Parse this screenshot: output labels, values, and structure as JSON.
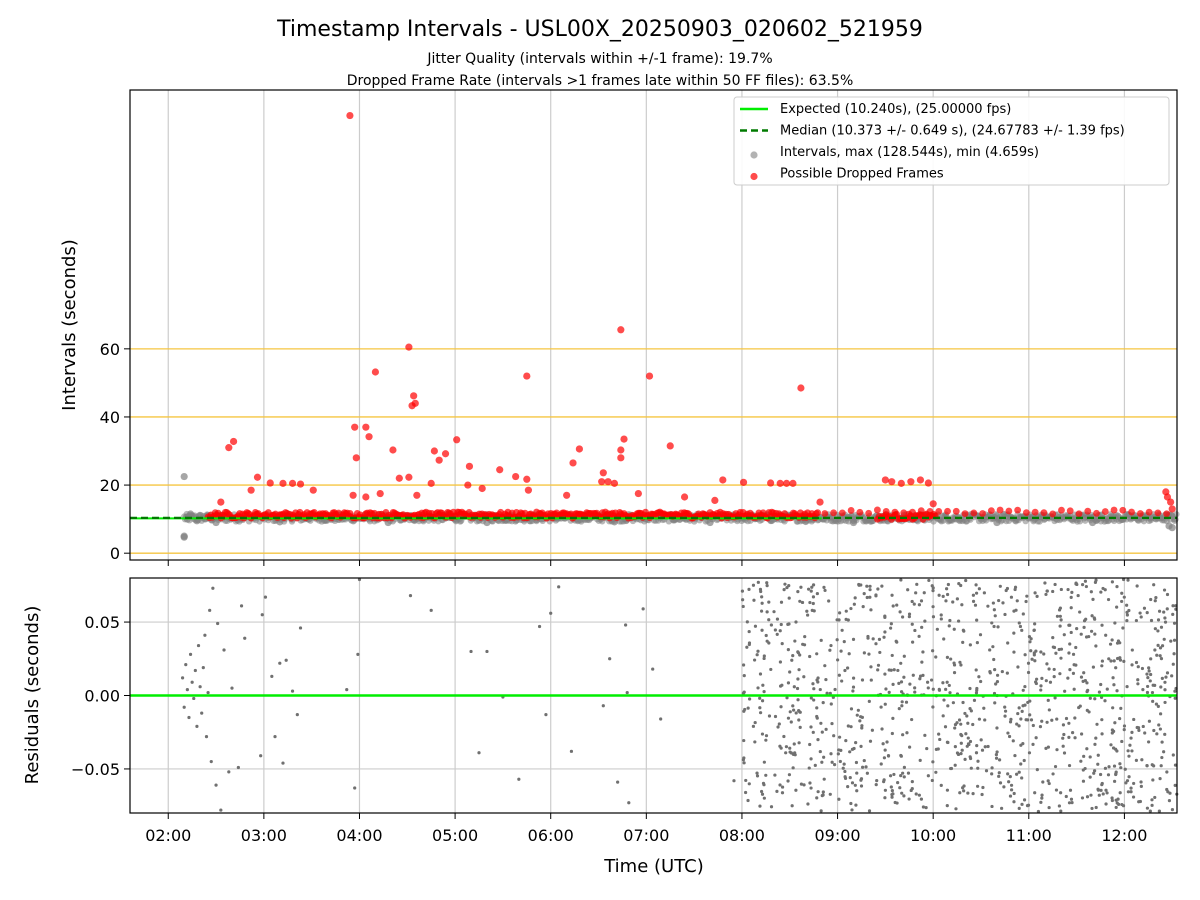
{
  "header": {
    "title": "Timestamp Intervals - USL00X_20250903_020602_521959",
    "subtitle1": "Jitter Quality (intervals within +/-1 frame): 19.7%",
    "subtitle2": "Dropped Frame Rate (intervals >1 frames late within 50 FF files): 63.5%"
  },
  "colors": {
    "expected": "#00ee00",
    "median": "#007a00",
    "intervals": "#808080",
    "dropped": "#ff0000",
    "refline": "#f5c542",
    "residual": "#707070"
  },
  "chart_data": [
    {
      "type": "scatter",
      "ylabel": "Intervals (seconds)",
      "xlim": [
        "01:36",
        "12:33"
      ],
      "ylim": [
        -2,
        136
      ],
      "yticks": [
        0,
        20,
        40,
        60
      ],
      "grid": "x",
      "horizontal_lines": [
        0,
        20,
        40,
        60
      ],
      "legend_position": "upper right",
      "legend": [
        {
          "label": "Expected (10.240s), (25.00000 fps)",
          "kind": "line-solid",
          "color": "#00ee00"
        },
        {
          "label": "Median (10.373 +/- 0.649 s), (24.67783 +/- 1.39 fps)",
          "kind": "line-dashed",
          "color": "#007a00"
        },
        {
          "label": "Intervals, max (128.544s), min (4.659s)",
          "kind": "dot",
          "color": "#808080"
        },
        {
          "label": "Possible Dropped Frames",
          "kind": "dot",
          "color": "#ff0000"
        }
      ],
      "series": [
        {
          "name": "Expected",
          "kind": "hline",
          "y": 10.24,
          "x_range": [
            "01:36",
            "08:50"
          ]
        },
        {
          "name": "Median",
          "kind": "hline",
          "y": 10.373,
          "x_range": [
            "01:36",
            "12:33"
          ]
        },
        {
          "name": "Intervals",
          "kind": "scatter",
          "note": "dense band from 02:10 to 12:33 between 7 and 13 s",
          "points": [
            [
              "02:10",
              22.5
            ],
            [
              "02:10",
              5.0
            ],
            [
              "02:10",
              4.7
            ],
            [
              "02:12",
              10.0
            ],
            [
              "02:14",
              11.5
            ],
            [
              "02:18",
              9.5
            ],
            [
              "02:24",
              10.8
            ],
            [
              "02:30",
              9.0
            ],
            [
              "03:10",
              9.2
            ],
            [
              "04:18",
              9.0
            ],
            [
              "05:20",
              9.0
            ],
            [
              "06:40",
              9.2
            ],
            [
              "07:40",
              9.0
            ],
            [
              "08:40",
              9.3
            ],
            [
              "09:10",
              9.0
            ],
            [
              "10:40",
              9.0
            ],
            [
              "11:40",
              9.0
            ],
            [
              "12:28",
              8.0
            ],
            [
              "12:30",
              7.5
            ]
          ]
        },
        {
          "name": "Possible Dropped Frames",
          "kind": "scatter",
          "points": [
            [
              "03:54",
              128.5
            ],
            [
              "06:44",
              65.6
            ],
            [
              "04:31",
              60.5
            ],
            [
              "04:10",
              53.2
            ],
            [
              "05:45",
              52.0
            ],
            [
              "07:02",
              52.0
            ],
            [
              "08:37",
              48.5
            ],
            [
              "04:34",
              46.2
            ],
            [
              "04:33",
              43.3
            ],
            [
              "04:35",
              44.0
            ],
            [
              "03:57",
              37.0
            ],
            [
              "04:04",
              37.0
            ],
            [
              "04:06",
              34.2
            ],
            [
              "02:38",
              31.0
            ],
            [
              "02:41",
              32.8
            ],
            [
              "04:47",
              30.0
            ],
            [
              "04:54",
              29.2
            ],
            [
              "04:50",
              27.3
            ],
            [
              "05:01",
              33.3
            ],
            [
              "06:46",
              33.5
            ],
            [
              "06:44",
              30.3
            ],
            [
              "06:44",
              28.0
            ],
            [
              "07:15",
              31.5
            ],
            [
              "06:18",
              30.6
            ],
            [
              "06:14",
              26.5
            ],
            [
              "05:09",
              25.5
            ],
            [
              "05:28",
              24.5
            ],
            [
              "06:33",
              23.6
            ],
            [
              "04:21",
              30.3
            ],
            [
              "04:25",
              22.0
            ],
            [
              "04:31",
              22.3
            ],
            [
              "03:58",
              28.0
            ],
            [
              "04:45",
              20.5
            ],
            [
              "05:08",
              20.0
            ],
            [
              "05:38",
              22.5
            ],
            [
              "05:45",
              21.7
            ],
            [
              "06:32",
              21.0
            ],
            [
              "06:36",
              21.0
            ],
            [
              "06:40",
              20.5
            ],
            [
              "02:56",
              22.3
            ],
            [
              "03:04",
              20.6
            ],
            [
              "03:12",
              20.5
            ],
            [
              "03:18",
              20.5
            ],
            [
              "03:23",
              20.3
            ],
            [
              "07:48",
              21.5
            ],
            [
              "08:01",
              20.8
            ],
            [
              "08:18",
              20.6
            ],
            [
              "08:24",
              20.5
            ],
            [
              "08:28",
              20.5
            ],
            [
              "08:32",
              20.5
            ],
            [
              "09:30",
              21.5
            ],
            [
              "09:34",
              21.0
            ],
            [
              "09:40",
              20.5
            ],
            [
              "09:46",
              21.0
            ],
            [
              "09:52",
              21.5
            ],
            [
              "09:57",
              20.6
            ],
            [
              "02:52",
              18.5
            ],
            [
              "03:31",
              18.5
            ],
            [
              "03:56",
              17.0
            ],
            [
              "04:04",
              16.5
            ],
            [
              "04:13",
              17.5
            ],
            [
              "04:36",
              17.0
            ],
            [
              "05:17",
              19.0
            ],
            [
              "05:46",
              18.5
            ],
            [
              "06:10",
              17.0
            ],
            [
              "06:55",
              17.5
            ],
            [
              "07:24",
              16.5
            ],
            [
              "07:43",
              15.5
            ],
            [
              "08:49",
              15.0
            ],
            [
              "10:00",
              14.5
            ],
            [
              "02:33",
              15.0
            ],
            [
              "12:26",
              18.0
            ],
            [
              "12:27",
              16.5
            ],
            [
              "12:29",
              15.0
            ],
            [
              "12:30",
              13.0
            ]
          ]
        }
      ]
    },
    {
      "type": "scatter",
      "xlabel": "Time (UTC)",
      "ylabel": "Residuals (seconds)",
      "xlim": [
        "01:36",
        "12:33"
      ],
      "ylim": [
        -0.08,
        0.08
      ],
      "xticks": [
        "02:00",
        "03:00",
        "04:00",
        "05:00",
        "06:00",
        "07:00",
        "08:00",
        "09:00",
        "10:00",
        "11:00",
        "12:00"
      ],
      "yticks": [
        -0.05,
        0.0,
        0.05
      ],
      "ytick_labels": [
        "−0.05",
        "0.00",
        "0.05"
      ],
      "grid": "both",
      "series": [
        {
          "name": "Zero",
          "kind": "hline",
          "y": 0.0
        },
        {
          "name": "Residuals",
          "kind": "scatter",
          "points": [
            [
              "02:09",
              0.012
            ],
            [
              "02:10",
              -0.008
            ],
            [
              "02:11",
              0.021
            ],
            [
              "02:12",
              0.004
            ],
            [
              "02:13",
              -0.015
            ],
            [
              "02:14",
              0.028
            ],
            [
              "02:15",
              0.009
            ],
            [
              "02:16",
              -0.002
            ],
            [
              "02:17",
              0.017
            ],
            [
              "02:18",
              -0.021
            ],
            [
              "02:19",
              0.034
            ],
            [
              "02:20",
              0.006
            ],
            [
              "02:21",
              -0.012
            ],
            [
              "02:22",
              0.019
            ],
            [
              "02:23",
              0.041
            ],
            [
              "02:24",
              -0.028
            ],
            [
              "02:25",
              0.002
            ],
            [
              "02:26",
              0.058
            ],
            [
              "02:27",
              -0.045
            ],
            [
              "02:28",
              0.073
            ],
            [
              "02:30",
              -0.061
            ],
            [
              "02:31",
              0.049
            ],
            [
              "02:33",
              -0.078
            ],
            [
              "02:35",
              0.031
            ],
            [
              "02:38",
              -0.052
            ],
            [
              "02:40",
              0.005
            ],
            [
              "02:44",
              -0.049
            ],
            [
              "02:46",
              0.061
            ],
            [
              "02:48",
              0.039
            ],
            [
              "02:58",
              -0.041
            ],
            [
              "02:59",
              0.055
            ],
            [
              "03:01",
              0.067
            ],
            [
              "03:05",
              0.013
            ],
            [
              "03:07",
              -0.028
            ],
            [
              "03:10",
              0.022
            ],
            [
              "03:12",
              -0.046
            ],
            [
              "03:14",
              0.024
            ],
            [
              "03:18",
              0.003
            ],
            [
              "03:21",
              -0.013
            ],
            [
              "03:23",
              0.046
            ],
            [
              "03:57",
              -0.063
            ],
            [
              "03:59",
              0.028
            ],
            [
              "04:00",
              0.079
            ],
            [
              "03:52",
              0.004
            ],
            [
              "04:32",
              0.068
            ],
            [
              "04:45",
              0.058
            ],
            [
              "05:10",
              0.03
            ],
            [
              "05:15",
              -0.039
            ],
            [
              "05:20",
              0.03
            ],
            [
              "05:30",
              -0.001
            ],
            [
              "05:40",
              -0.057
            ],
            [
              "05:53",
              0.047
            ],
            [
              "05:57",
              -0.013
            ],
            [
              "06:00",
              0.056
            ],
            [
              "06:05",
              0.074
            ],
            [
              "06:13",
              -0.038
            ],
            [
              "06:33",
              -0.007
            ],
            [
              "06:37",
              0.025
            ],
            [
              "06:42",
              -0.059
            ],
            [
              "06:47",
              0.048
            ],
            [
              "06:48",
              0.002
            ],
            [
              "06:49",
              -0.073
            ],
            [
              "06:58",
              0.059
            ],
            [
              "07:04",
              0.018
            ],
            [
              "07:09",
              -0.016
            ],
            [
              "07:55",
              -0.058
            ]
          ],
          "note": "dense scatter between 08:00 and 12:33 spanning the full range -0.08 to 0.08"
        }
      ]
    }
  ]
}
